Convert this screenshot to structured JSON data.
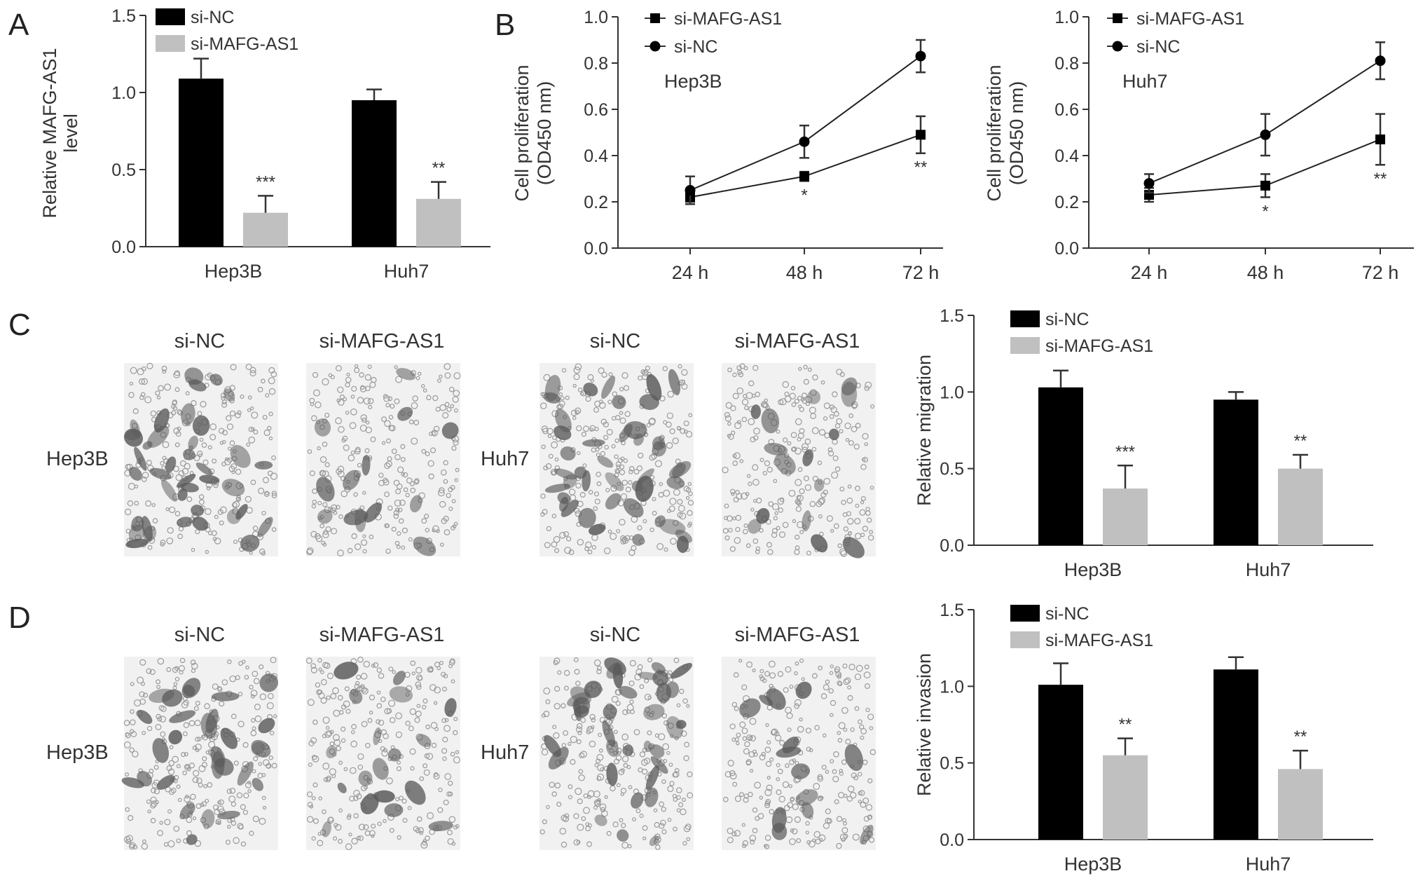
{
  "colors": {
    "si_nc": "#000000",
    "si_mafg": "#c0c0c0",
    "axis": "#333333",
    "text": "#333333",
    "micro_bg": "#f1f1f1",
    "cell": "#5a5a5a"
  },
  "panel_letters": [
    "A",
    "B",
    "C",
    "D"
  ],
  "micro": {
    "col_labels": [
      "si-NC",
      "si-MAFG-AS1",
      "si-NC",
      "si-MAFG-AS1"
    ],
    "row_labels": [
      "Hep3B",
      "Huh7",
      "Hep3B",
      "Huh7"
    ],
    "density": [
      [
        0.55,
        0.18,
        0.6,
        0.22
      ],
      [
        0.4,
        0.25,
        0.5,
        0.18
      ]
    ]
  },
  "chart_data": [
    {
      "id": "A",
      "type": "bar",
      "categories": [
        "Hep3B",
        "Huh7"
      ],
      "series": [
        {
          "name": "si-NC",
          "values": [
            1.09,
            0.95
          ],
          "errors": [
            0.13,
            0.07
          ]
        },
        {
          "name": "si-MAFG-AS1",
          "values": [
            0.22,
            0.31
          ],
          "errors": [
            0.11,
            0.11
          ]
        }
      ],
      "ylabel": [
        "Relative MAFG-AS1",
        "level"
      ],
      "ylim": [
        0,
        1.5
      ],
      "yticks": [
        "0.0",
        "0.5",
        "1.0",
        "1.5"
      ],
      "annotations": [
        "***",
        "**"
      ],
      "legend_position": "top-left"
    },
    {
      "id": "B1",
      "type": "line",
      "x": [
        "24 h",
        "48 h",
        "72 h"
      ],
      "series": [
        {
          "name": "si-MAFG-AS1",
          "marker": "square",
          "values": [
            0.22,
            0.31,
            0.49
          ],
          "errors": [
            0.02,
            0.02,
            0.08
          ]
        },
        {
          "name": "si-NC",
          "marker": "circle",
          "values": [
            0.25,
            0.46,
            0.83
          ],
          "errors": [
            0.06,
            0.07,
            0.07
          ]
        }
      ],
      "title": "Hep3B",
      "ylabel": [
        "Cell proliferation",
        "(OD450 nm)"
      ],
      "ylim": [
        0,
        1.0
      ],
      "yticks": [
        "0.0",
        "0.2",
        "0.4",
        "0.6",
        "0.8",
        "1.0"
      ],
      "annotations": [
        "*",
        "**"
      ],
      "legend_position": "top-left"
    },
    {
      "id": "B2",
      "type": "line",
      "x": [
        "24 h",
        "48 h",
        "72 h"
      ],
      "series": [
        {
          "name": "si-MAFG-AS1",
          "marker": "square",
          "values": [
            0.23,
            0.27,
            0.47
          ],
          "errors": [
            0.03,
            0.05,
            0.11
          ]
        },
        {
          "name": "si-NC",
          "marker": "circle",
          "values": [
            0.28,
            0.49,
            0.81
          ],
          "errors": [
            0.04,
            0.09,
            0.08
          ]
        }
      ],
      "title": "Huh7",
      "ylabel": [
        "Cell proliferation",
        "(OD450 nm)"
      ],
      "ylim": [
        0,
        1.0
      ],
      "yticks": [
        "0.0",
        "0.2",
        "0.4",
        "0.6",
        "0.8",
        "1.0"
      ],
      "annotations": [
        "*",
        "**"
      ],
      "legend_position": "top-left"
    },
    {
      "id": "C",
      "type": "bar",
      "categories": [
        "Hep3B",
        "Huh7"
      ],
      "series": [
        {
          "name": "si-NC",
          "values": [
            1.03,
            0.95
          ],
          "errors": [
            0.11,
            0.05
          ]
        },
        {
          "name": "si-MAFG-AS1",
          "values": [
            0.37,
            0.5
          ],
          "errors": [
            0.15,
            0.09
          ]
        }
      ],
      "ylabel": [
        "Relative migration"
      ],
      "ylim": [
        0,
        1.5
      ],
      "yticks": [
        "0.0",
        "0.5",
        "1.0",
        "1.5"
      ],
      "annotations": [
        "***",
        "**"
      ],
      "legend_position": "top-left"
    },
    {
      "id": "D",
      "type": "bar",
      "categories": [
        "Hep3B",
        "Huh7"
      ],
      "series": [
        {
          "name": "si-NC",
          "values": [
            1.01,
            1.11
          ],
          "errors": [
            0.14,
            0.08
          ]
        },
        {
          "name": "si-MAFG-AS1",
          "values": [
            0.55,
            0.46
          ],
          "errors": [
            0.11,
            0.12
          ]
        }
      ],
      "ylabel": [
        "Relative invasion"
      ],
      "ylim": [
        0,
        1.5
      ],
      "yticks": [
        "0.0",
        "0.5",
        "1.0",
        "1.5"
      ],
      "annotations": [
        "**",
        "**"
      ],
      "legend_position": "top-left"
    }
  ]
}
